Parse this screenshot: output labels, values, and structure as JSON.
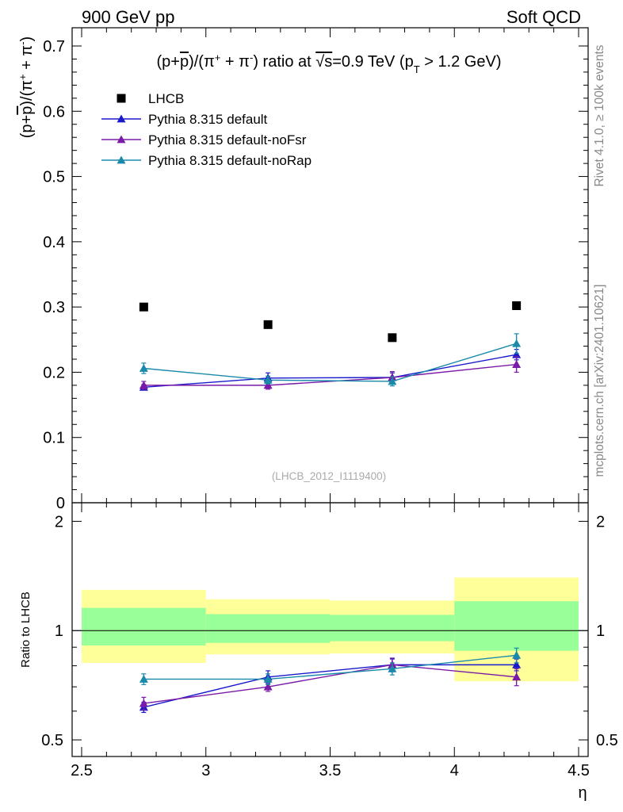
{
  "header": {
    "left_label": "900 GeV pp",
    "right_label": "Soft QCD"
  },
  "side_labels": {
    "rivet": "Rivet 4.1.0, ≥ 100k events",
    "mcplots": "mcplots.cern.ch [arXiv:2401.10621]"
  },
  "chart_data": {
    "type": "scatter",
    "title": "(p+p̅)/(π⁺ + π⁻) ratio at √s=0.9 TeV (p_T > 1.2 GeV)",
    "title_parts": {
      "pre": "(p+",
      "pbar": "p",
      "mid": ")/(π",
      "plus1": "+",
      "plus_sep": " + π",
      "minus1": "-",
      "post1": ") ratio at ",
      "sqrt": "√",
      "s": "s",
      "post2": "=0.9 TeV (p",
      "sub_t": "T",
      "post3": " > 1.2 GeV)"
    },
    "ylabel_parts": {
      "pre": "(p+",
      "pbar": "p",
      "mid": ")/(π",
      "plus1": "+",
      "plus_sep": " + π",
      "minus1": "-",
      "post": ")"
    },
    "xlabel": "η",
    "ratio_ylabel": "Ratio to LHCB",
    "watermark": "(LHCB_2012_I1119400)",
    "xlim": [
      2.5,
      4.5
    ],
    "ylim": [
      0,
      0.7
    ],
    "ratio_ylim": [
      0.45,
      2.25
    ],
    "x_ticks": [
      "2.5",
      "3",
      "3.5",
      "4",
      "4.5"
    ],
    "y_ticks": [
      "0",
      "0.1",
      "0.2",
      "0.3",
      "0.4",
      "0.5",
      "0.6",
      "0.7"
    ],
    "ratio_y_ticks": [
      "0.5",
      "1",
      "2"
    ],
    "bins": [
      {
        "lo": 2.5,
        "hi": 3.0
      },
      {
        "lo": 3.0,
        "hi": 3.5
      },
      {
        "lo": 3.5,
        "hi": 4.0
      },
      {
        "lo": 4.0,
        "hi": 4.5
      }
    ],
    "data": {
      "name": "LHCB",
      "color": "#000000",
      "x": [
        2.75,
        3.25,
        3.75,
        4.25
      ],
      "y": [
        0.3,
        0.273,
        0.253,
        0.302
      ],
      "band_stat": [
        [
          0.91,
          1.155
        ],
        [
          0.925,
          1.11
        ],
        [
          0.935,
          1.105
        ],
        [
          0.88,
          1.205
        ]
      ],
      "band_total": [
        [
          0.815,
          1.295
        ],
        [
          0.86,
          1.22
        ],
        [
          0.865,
          1.21
        ],
        [
          0.725,
          1.4
        ]
      ]
    },
    "series": [
      {
        "name": "Pythia 8.315 default",
        "color": "#1a1acc",
        "x": [
          2.75,
          3.25,
          3.75,
          4.25
        ],
        "y": [
          0.177,
          0.191,
          0.192,
          0.227
        ],
        "err": [
          0.004,
          0.008,
          0.007,
          0.008
        ],
        "ratio": [
          0.615,
          0.745,
          0.805,
          0.805
        ],
        "ratio_err": [
          0.02,
          0.03,
          0.03,
          0.03
        ]
      },
      {
        "name": "Pythia 8.315 default-noFsr",
        "color": "#7a1aa8",
        "x": [
          2.75,
          3.25,
          3.75,
          4.25
        ],
        "y": [
          0.18,
          0.18,
          0.192,
          0.212
        ],
        "err": [
          0.006,
          0.006,
          0.009,
          0.012
        ],
        "ratio": [
          0.63,
          0.7,
          0.805,
          0.745
        ],
        "ratio_err": [
          0.025,
          0.02,
          0.035,
          0.04
        ]
      },
      {
        "name": "Pythia 8.315 default-noRap",
        "color": "#1a8aaa",
        "x": [
          2.75,
          3.25,
          3.75,
          4.25
        ],
        "y": [
          0.206,
          0.188,
          0.186,
          0.244
        ],
        "err": [
          0.008,
          0.006,
          0.007,
          0.015
        ],
        "ratio": [
          0.735,
          0.735,
          0.785,
          0.855
        ],
        "ratio_err": [
          0.025,
          0.025,
          0.03,
          0.04
        ]
      }
    ]
  }
}
